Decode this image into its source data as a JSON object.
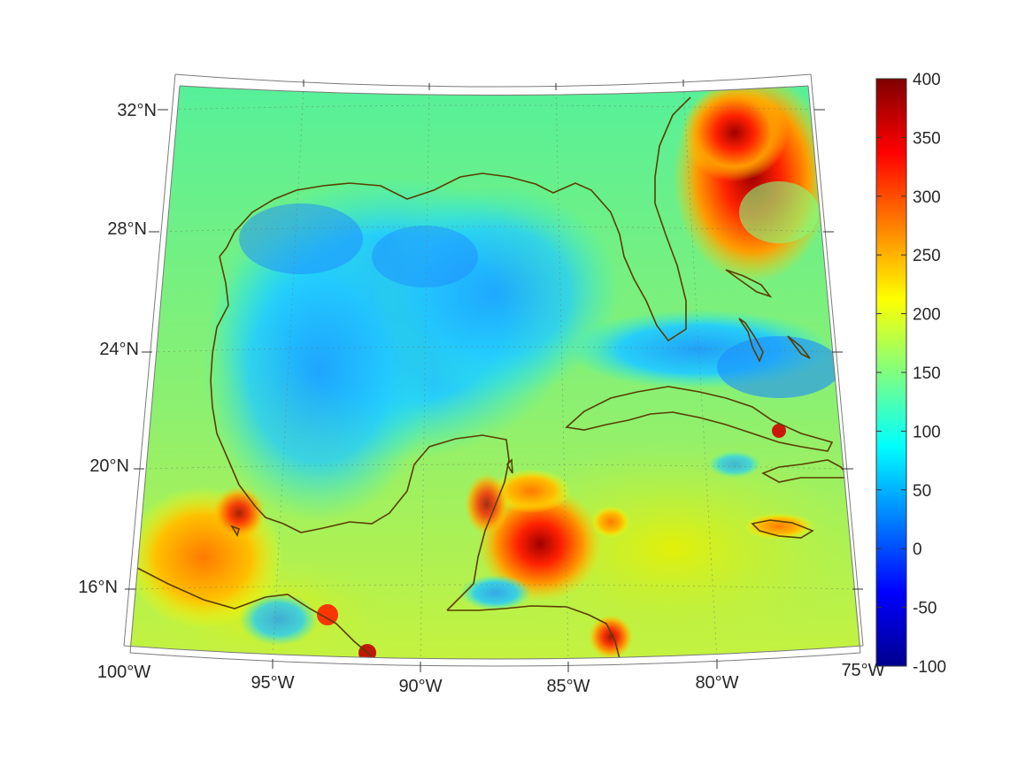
{
  "map": {
    "projection": "conic",
    "lon_range": [
      -100,
      -75
    ],
    "lat_range": [
      14,
      33
    ],
    "lon_tick_labels": [
      "100°W",
      "95°W",
      "90°W",
      "85°W",
      "80°W",
      "75°W"
    ],
    "lat_tick_labels": [
      "32°N",
      "28°N",
      "24°N",
      "20°N",
      "16°N"
    ],
    "coastline_color": "#5a3d00",
    "grid": "dotted"
  },
  "colorbar": {
    "colormap": "jet",
    "range": [
      -100,
      400
    ],
    "tick_labels": [
      "400",
      "350",
      "300",
      "250",
      "200",
      "150",
      "100",
      "50",
      "0",
      "-50",
      "-100"
    ],
    "colors": [
      "#00008f",
      "#0000ff",
      "#0080ff",
      "#00ffff",
      "#80ff80",
      "#ffff00",
      "#ff8000",
      "#ff0000",
      "#800000"
    ]
  }
}
